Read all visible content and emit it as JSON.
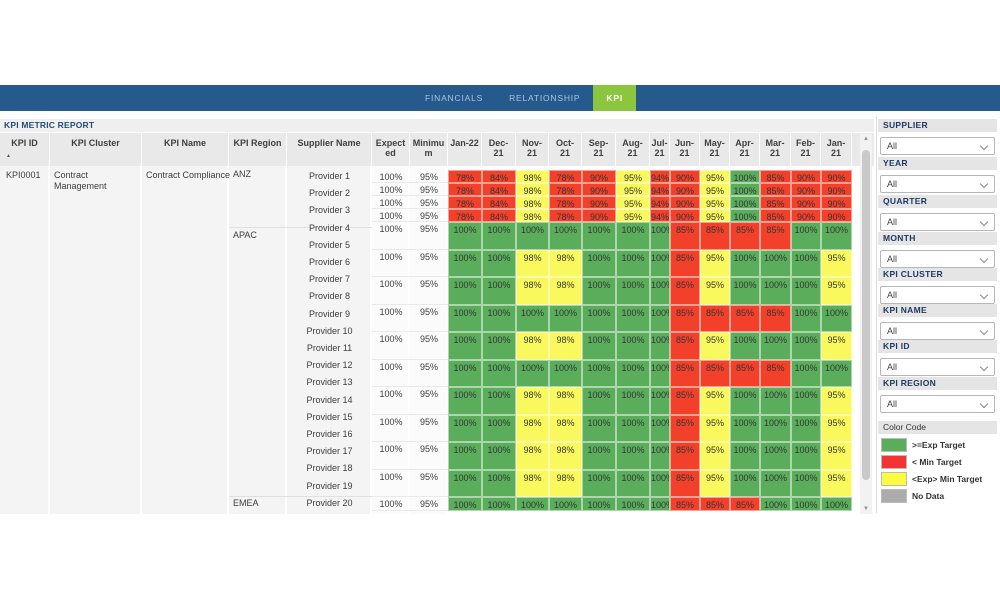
{
  "nav": {
    "tabs": [
      {
        "label": "FINANCIALS",
        "active": false
      },
      {
        "label": "RELATIONSHIP",
        "active": false
      },
      {
        "label": "KPI",
        "active": true
      }
    ]
  },
  "report": {
    "title": "KPI METRIC REPORT",
    "headers": {
      "kpi_id": "KPI ID",
      "kpi_cluster": "KPI Cluster",
      "kpi_name": "KPI Name",
      "kpi_region": "KPI Region",
      "supplier_name": "Supplier Name",
      "expected": "Expected",
      "minimum": "Minimum"
    },
    "month_headers": [
      "Jan-22",
      "Dec-\n21",
      "Nov-\n21",
      "Oct-\n21",
      "Sep-\n21",
      "Aug-\n21",
      "Jul-\n21",
      "Jun-\n21",
      "May-\n21",
      "Apr-\n21",
      "Mar-\n21",
      "Feb-\n21",
      "Jan-\n21"
    ],
    "group": {
      "kpi_id": "KPI0001",
      "kpi_cluster": "Contract Management",
      "kpi_name": "Contract Compliance"
    },
    "regions": [
      "ANZ",
      "APAC",
      "EMEA"
    ],
    "suppliers": [
      "Provider 1",
      "Provider 2",
      "Provider 3",
      "Provider 4",
      "Provider 5",
      "Provider 6",
      "Provider 7",
      "Provider 8",
      "Provider 9",
      "Provider 10",
      "Provider 11",
      "Provider 12",
      "Provider 13",
      "Provider 14",
      "Provider 15",
      "Provider 16",
      "Provider 17",
      "Provider 18",
      "Provider 19",
      "Provider 20"
    ],
    "thresholds": {
      "expected_pct": 100,
      "minimum_pct": 95
    },
    "rows": [
      {
        "expected": "100%",
        "minimum": "95%",
        "values": [
          78,
          84,
          98,
          78,
          90,
          95,
          94,
          90,
          95,
          100,
          85,
          90,
          90
        ]
      },
      {
        "expected": "100%",
        "minimum": "95%",
        "values": [
          78,
          84,
          98,
          78,
          90,
          95,
          94,
          90,
          95,
          100,
          85,
          90,
          90
        ]
      },
      {
        "expected": "100%",
        "minimum": "95%",
        "values": [
          78,
          84,
          98,
          78,
          90,
          95,
          94,
          90,
          95,
          100,
          85,
          90,
          90
        ]
      },
      {
        "expected": "100%",
        "minimum": "95%",
        "values": [
          78,
          84,
          98,
          78,
          90,
          95,
          94,
          90,
          95,
          100,
          85,
          90,
          90
        ]
      },
      {
        "expected": "100%",
        "minimum": "95%",
        "values": [
          100,
          100,
          100,
          100,
          100,
          100,
          100,
          85,
          85,
          85,
          85,
          100,
          100
        ]
      },
      {
        "expected": "100%",
        "minimum": "95%",
        "values": [
          100,
          100,
          98,
          98,
          100,
          100,
          100,
          85,
          95,
          100,
          100,
          100,
          95
        ]
      },
      {
        "expected": "100%",
        "minimum": "95%",
        "values": [
          100,
          100,
          98,
          98,
          100,
          100,
          100,
          85,
          95,
          100,
          100,
          100,
          95
        ]
      },
      {
        "expected": "100%",
        "minimum": "95%",
        "values": [
          100,
          100,
          100,
          100,
          100,
          100,
          100,
          85,
          85,
          85,
          85,
          100,
          100
        ]
      },
      {
        "expected": "100%",
        "minimum": "95%",
        "values": [
          100,
          100,
          98,
          98,
          100,
          100,
          100,
          85,
          95,
          100,
          100,
          100,
          95
        ]
      },
      {
        "expected": "100%",
        "minimum": "95%",
        "values": [
          100,
          100,
          100,
          100,
          100,
          100,
          100,
          85,
          85,
          85,
          85,
          100,
          100
        ]
      },
      {
        "expected": "100%",
        "minimum": "95%",
        "values": [
          100,
          100,
          98,
          98,
          100,
          100,
          100,
          85,
          95,
          100,
          100,
          100,
          95
        ]
      },
      {
        "expected": "100%",
        "minimum": "95%",
        "values": [
          100,
          100,
          98,
          98,
          100,
          100,
          100,
          85,
          95,
          100,
          100,
          100,
          95
        ]
      },
      {
        "expected": "100%",
        "minimum": "95%",
        "values": [
          100,
          100,
          98,
          98,
          100,
          100,
          100,
          85,
          95,
          100,
          100,
          100,
          95
        ]
      },
      {
        "expected": "100%",
        "minimum": "95%",
        "values": [
          100,
          100,
          98,
          98,
          100,
          100,
          100,
          85,
          95,
          100,
          100,
          100,
          95
        ]
      },
      {
        "expected": "100%",
        "minimum": "95%",
        "values": [
          100,
          100,
          100,
          100,
          100,
          100,
          100,
          85,
          85,
          85,
          100,
          100,
          100
        ]
      }
    ]
  },
  "filters": [
    {
      "label": "SUPPLIER",
      "value": "All"
    },
    {
      "label": "YEAR",
      "value": "All"
    },
    {
      "label": "QUARTER",
      "value": "All"
    },
    {
      "label": "MONTH",
      "value": "All"
    },
    {
      "label": "KPI CLUSTER",
      "value": "All"
    },
    {
      "label": "KPI NAME",
      "value": "All"
    },
    {
      "label": "KPI ID",
      "value": "All"
    },
    {
      "label": "KPI REGION",
      "value": "All"
    }
  ],
  "legend": {
    "title": "Color Code",
    "items": [
      {
        "label": ">=Exp Target",
        "color": "#5AAD5B"
      },
      {
        "label": "< Min Target",
        "color": "#F43434"
      },
      {
        "label": "<Exp> Min Target",
        "color": "#FCFC3E"
      },
      {
        "label": "No Data",
        "color": "#ACACAC"
      }
    ]
  },
  "colors": {
    "green": "#5AAD5B",
    "red": "#F2402B",
    "yellow": "#F9F95D",
    "nav": "#26598C",
    "nav_active": "#8CC63F"
  }
}
